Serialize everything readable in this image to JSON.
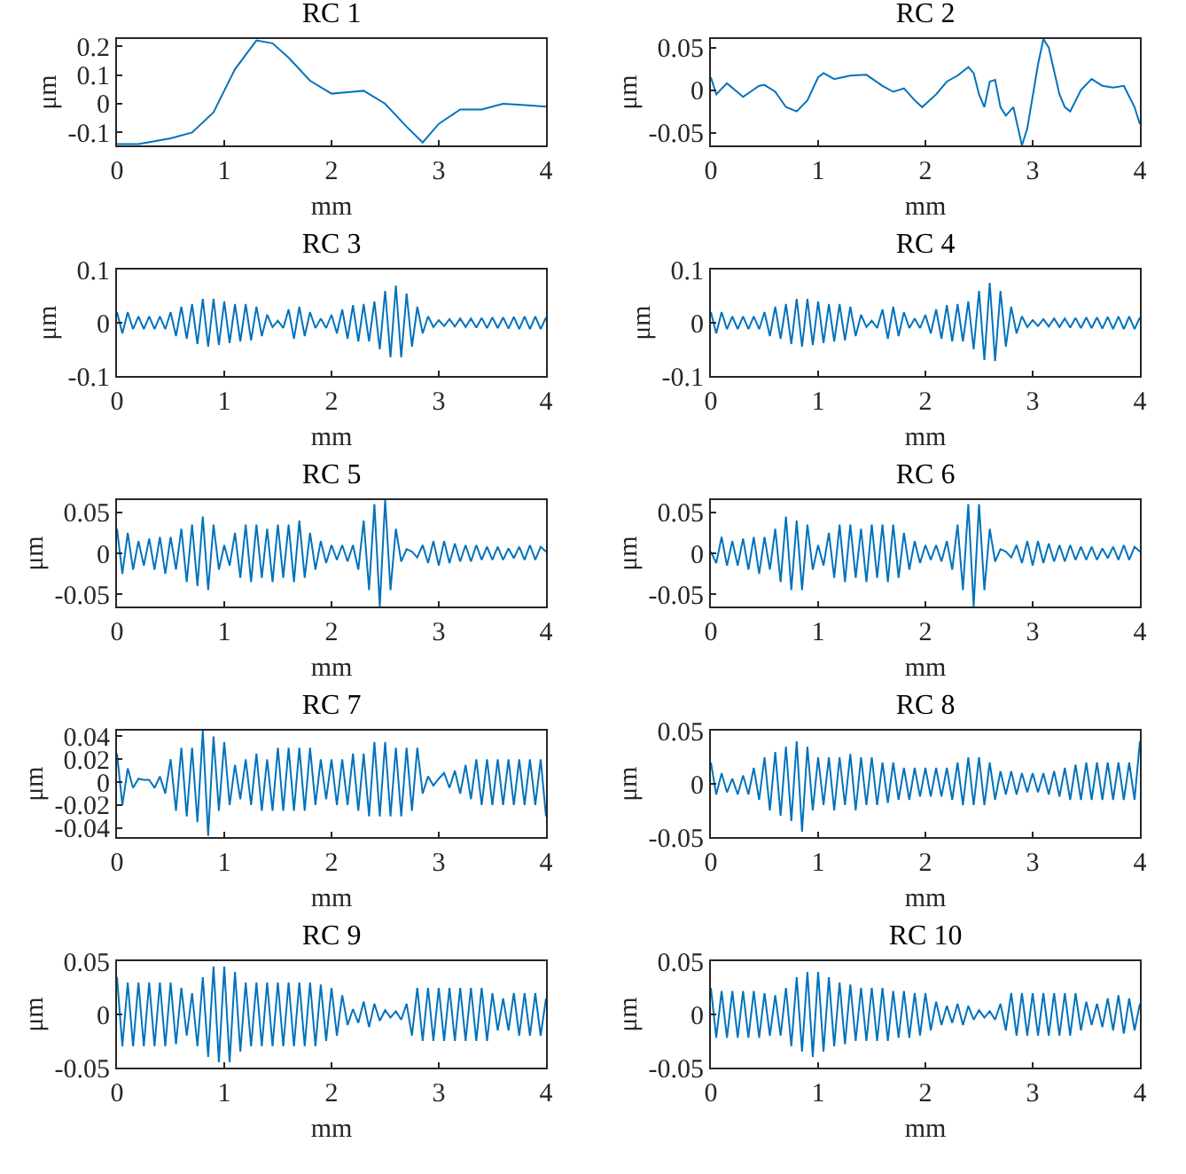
{
  "chart_data": [
    {
      "type": "line",
      "title": "RC 1",
      "xlabel": "mm",
      "ylabel": "μm",
      "color": "#0072bd",
      "xlim": [
        0,
        4
      ],
      "xticks": [
        0,
        1,
        2,
        3,
        4
      ],
      "ylim": [
        -0.145,
        0.225
      ],
      "yticks": [
        -0.1,
        0,
        0.1,
        0.2
      ],
      "x": [
        0,
        0.2,
        0.5,
        0.7,
        0.9,
        1.1,
        1.3,
        1.45,
        1.6,
        1.8,
        2.0,
        2.15,
        2.3,
        2.5,
        2.7,
        2.85,
        3.0,
        3.2,
        3.4,
        3.6,
        3.8,
        4.0
      ],
      "values": [
        -0.14,
        -0.14,
        -0.12,
        -0.1,
        -0.03,
        0.12,
        0.22,
        0.21,
        0.16,
        0.08,
        0.035,
        0.04,
        0.045,
        0.0,
        -0.08,
        -0.135,
        -0.07,
        -0.02,
        -0.02,
        0.0,
        -0.005,
        -0.01
      ]
    },
    {
      "type": "line",
      "title": "RC 2",
      "xlabel": "mm",
      "ylabel": "μm",
      "color": "#0072bd",
      "xlim": [
        0,
        4
      ],
      "xticks": [
        0,
        1,
        2,
        3,
        4
      ],
      "ylim": [
        -0.065,
        0.06
      ],
      "yticks": [
        -0.05,
        0,
        0.05
      ],
      "x": [
        0,
        0.05,
        0.15,
        0.3,
        0.45,
        0.5,
        0.6,
        0.7,
        0.8,
        0.9,
        1.0,
        1.05,
        1.15,
        1.3,
        1.45,
        1.6,
        1.7,
        1.8,
        1.9,
        1.97,
        2.1,
        2.2,
        2.3,
        2.4,
        2.45,
        2.5,
        2.55,
        2.6,
        2.65,
        2.7,
        2.75,
        2.82,
        2.9,
        2.95,
        3.05,
        3.1,
        3.15,
        3.25,
        3.3,
        3.35,
        3.45,
        3.55,
        3.65,
        3.75,
        3.85,
        3.95,
        4.0
      ],
      "values": [
        0.015,
        -0.005,
        0.008,
        -0.008,
        0.005,
        0.006,
        -0.002,
        -0.02,
        -0.025,
        -0.012,
        0.015,
        0.02,
        0.013,
        0.017,
        0.018,
        0.005,
        -0.002,
        0.002,
        -0.012,
        -0.02,
        -0.005,
        0.01,
        0.017,
        0.027,
        0.02,
        -0.005,
        -0.02,
        0.01,
        0.012,
        -0.02,
        -0.03,
        -0.02,
        -0.065,
        -0.045,
        0.03,
        0.06,
        0.05,
        -0.005,
        -0.02,
        -0.025,
        0.0,
        0.013,
        0.005,
        0.003,
        0.005,
        -0.02,
        -0.04
      ]
    },
    {
      "type": "line",
      "title": "RC 3",
      "xlabel": "mm",
      "ylabel": "μm",
      "color": "#0072bd",
      "xlim": [
        0,
        4
      ],
      "xticks": [
        0,
        1,
        2,
        3,
        4
      ],
      "ylim": [
        -0.1,
        0.1
      ],
      "yticks": [
        -0.1,
        0,
        0.1
      ],
      "x": [
        0,
        0.05,
        0.1,
        0.15,
        0.2,
        0.25,
        0.3,
        0.35,
        0.4,
        0.45,
        0.5,
        0.55,
        0.6,
        0.65,
        0.7,
        0.75,
        0.8,
        0.85,
        0.9,
        0.95,
        1,
        1.05,
        1.1,
        1.15,
        1.2,
        1.25,
        1.3,
        1.35,
        1.4,
        1.45,
        1.5,
        1.55,
        1.6,
        1.65,
        1.7,
        1.75,
        1.8,
        1.85,
        1.9,
        1.95,
        2,
        2.05,
        2.1,
        2.15,
        2.2,
        2.25,
        2.3,
        2.35,
        2.4,
        2.45,
        2.5,
        2.55,
        2.6,
        2.65,
        2.7,
        2.75,
        2.8,
        2.85,
        2.9,
        2.95,
        3,
        3.05,
        3.1,
        3.15,
        3.2,
        3.25,
        3.3,
        3.35,
        3.4,
        3.45,
        3.5,
        3.55,
        3.6,
        3.65,
        3.7,
        3.75,
        3.8,
        3.85,
        3.9,
        3.95,
        4
      ],
      "values": [
        0.02,
        -0.02,
        0.02,
        -0.012,
        0.012,
        -0.012,
        0.012,
        -0.012,
        0.012,
        -0.012,
        0.02,
        -0.025,
        0.03,
        -0.03,
        0.035,
        -0.04,
        0.045,
        -0.045,
        0.045,
        -0.042,
        0.04,
        -0.038,
        0.035,
        -0.035,
        0.035,
        -0.033,
        0.03,
        -0.025,
        0.015,
        -0.008,
        0.004,
        -0.01,
        0.025,
        -0.03,
        0.03,
        -0.025,
        0.02,
        -0.01,
        0.008,
        -0.01,
        0.015,
        -0.02,
        0.025,
        -0.03,
        0.033,
        -0.035,
        0.035,
        -0.035,
        0.04,
        -0.05,
        0.06,
        -0.065,
        0.07,
        -0.065,
        0.055,
        -0.045,
        0.03,
        -0.02,
        0.012,
        -0.008,
        0.005,
        -0.006,
        0.007,
        -0.007,
        0.008,
        -0.008,
        0.008,
        -0.009,
        0.009,
        -0.01,
        0.01,
        -0.01,
        0.01,
        -0.011,
        0.011,
        -0.012,
        0.012,
        -0.012,
        0.012,
        -0.012,
        0.01
      ]
    },
    {
      "type": "line",
      "title": "RC 4",
      "xlabel": "mm",
      "ylabel": "μm",
      "color": "#0072bd",
      "xlim": [
        0,
        4
      ],
      "xticks": [
        0,
        1,
        2,
        3,
        4
      ],
      "ylim": [
        -0.1,
        0.1
      ],
      "yticks": [
        -0.1,
        0,
        0.1
      ],
      "x": [
        0,
        0.05,
        0.1,
        0.15,
        0.2,
        0.25,
        0.3,
        0.35,
        0.4,
        0.45,
        0.5,
        0.55,
        0.6,
        0.65,
        0.7,
        0.75,
        0.8,
        0.85,
        0.9,
        0.95,
        1,
        1.05,
        1.1,
        1.15,
        1.2,
        1.25,
        1.3,
        1.35,
        1.4,
        1.45,
        1.5,
        1.55,
        1.6,
        1.65,
        1.7,
        1.75,
        1.8,
        1.85,
        1.9,
        1.95,
        2,
        2.05,
        2.1,
        2.15,
        2.2,
        2.25,
        2.3,
        2.35,
        2.4,
        2.45,
        2.5,
        2.55,
        2.6,
        2.65,
        2.7,
        2.75,
        2.8,
        2.85,
        2.9,
        2.95,
        3,
        3.05,
        3.1,
        3.15,
        3.2,
        3.25,
        3.3,
        3.35,
        3.4,
        3.45,
        3.5,
        3.55,
        3.6,
        3.65,
        3.7,
        3.75,
        3.8,
        3.85,
        3.9,
        3.95,
        4
      ],
      "values": [
        0.02,
        -0.02,
        0.02,
        -0.012,
        0.012,
        -0.012,
        0.012,
        -0.012,
        0.012,
        -0.012,
        0.02,
        -0.025,
        0.03,
        -0.03,
        0.035,
        -0.04,
        0.045,
        -0.045,
        0.045,
        -0.042,
        0.04,
        -0.038,
        0.035,
        -0.035,
        0.035,
        -0.033,
        0.03,
        -0.025,
        0.015,
        -0.008,
        0.004,
        -0.01,
        0.025,
        -0.03,
        0.03,
        -0.025,
        0.02,
        -0.01,
        0.008,
        -0.01,
        0.015,
        -0.02,
        0.025,
        -0.03,
        0.033,
        -0.035,
        0.035,
        -0.035,
        0.04,
        -0.05,
        0.06,
        -0.07,
        0.075,
        -0.072,
        0.06,
        -0.045,
        0.03,
        -0.02,
        0.012,
        -0.008,
        0.005,
        -0.006,
        0.007,
        -0.007,
        0.008,
        -0.008,
        0.008,
        -0.009,
        0.009,
        -0.01,
        0.01,
        -0.01,
        0.01,
        -0.011,
        0.011,
        -0.012,
        0.012,
        -0.012,
        0.012,
        -0.012,
        0.01
      ]
    },
    {
      "type": "line",
      "title": "RC 5",
      "xlabel": "mm",
      "ylabel": "μm",
      "color": "#0072bd",
      "xlim": [
        0,
        4
      ],
      "xticks": [
        0,
        1,
        2,
        3,
        4
      ],
      "ylim": [
        -0.065,
        0.065
      ],
      "yticks": [
        -0.05,
        0,
        0.05
      ],
      "x": [
        0,
        0.05,
        0.1,
        0.15,
        0.2,
        0.25,
        0.3,
        0.35,
        0.4,
        0.45,
        0.5,
        0.55,
        0.6,
        0.65,
        0.7,
        0.75,
        0.8,
        0.85,
        0.9,
        0.95,
        1,
        1.05,
        1.1,
        1.15,
        1.2,
        1.25,
        1.3,
        1.35,
        1.4,
        1.45,
        1.5,
        1.55,
        1.6,
        1.65,
        1.7,
        1.75,
        1.8,
        1.85,
        1.9,
        1.95,
        2,
        2.05,
        2.1,
        2.15,
        2.2,
        2.25,
        2.3,
        2.35,
        2.4,
        2.45,
        2.5,
        2.55,
        2.6,
        2.65,
        2.7,
        2.75,
        2.8,
        2.85,
        2.9,
        2.95,
        3,
        3.05,
        3.1,
        3.15,
        3.2,
        3.25,
        3.3,
        3.35,
        3.4,
        3.45,
        3.5,
        3.55,
        3.6,
        3.65,
        3.7,
        3.75,
        3.8,
        3.85,
        3.9,
        3.95,
        4
      ],
      "values": [
        0.03,
        -0.025,
        0.025,
        -0.02,
        0.015,
        -0.015,
        0.018,
        -0.02,
        0.02,
        -0.025,
        0.02,
        -0.02,
        0.03,
        -0.035,
        0.035,
        -0.04,
        0.045,
        -0.045,
        0.035,
        -0.02,
        0.01,
        -0.015,
        0.025,
        -0.03,
        0.035,
        -0.035,
        0.035,
        -0.03,
        0.03,
        -0.035,
        0.035,
        -0.03,
        0.035,
        -0.035,
        0.04,
        -0.03,
        0.025,
        -0.02,
        0.015,
        -0.012,
        0.01,
        -0.008,
        0.01,
        -0.01,
        0.01,
        -0.02,
        0.04,
        -0.045,
        0.06,
        -0.065,
        0.065,
        -0.045,
        0.03,
        -0.01,
        0.005,
        0.002,
        -0.005,
        0.01,
        -0.012,
        0.015,
        -0.015,
        0.015,
        -0.012,
        0.012,
        -0.01,
        0.01,
        -0.01,
        0.01,
        -0.008,
        0.008,
        -0.008,
        0.008,
        -0.008,
        0.006,
        -0.006,
        0.008,
        -0.008,
        0.01,
        -0.008,
        0.008,
        0.002
      ]
    },
    {
      "type": "line",
      "title": "RC 6",
      "xlabel": "mm",
      "ylabel": "μm",
      "color": "#0072bd",
      "xlim": [
        0,
        4
      ],
      "xticks": [
        0,
        1,
        2,
        3,
        4
      ],
      "ylim": [
        -0.065,
        0.065
      ],
      "yticks": [
        -0.05,
        0,
        0.05
      ],
      "x": [
        0,
        0.05,
        0.1,
        0.15,
        0.2,
        0.25,
        0.3,
        0.35,
        0.4,
        0.45,
        0.5,
        0.55,
        0.6,
        0.65,
        0.7,
        0.75,
        0.8,
        0.85,
        0.9,
        0.95,
        1,
        1.05,
        1.1,
        1.15,
        1.2,
        1.25,
        1.3,
        1.35,
        1.4,
        1.45,
        1.5,
        1.55,
        1.6,
        1.65,
        1.7,
        1.75,
        1.8,
        1.85,
        1.9,
        1.95,
        2,
        2.05,
        2.1,
        2.15,
        2.2,
        2.25,
        2.3,
        2.35,
        2.4,
        2.45,
        2.5,
        2.55,
        2.6,
        2.65,
        2.7,
        2.75,
        2.8,
        2.85,
        2.9,
        2.95,
        3,
        3.05,
        3.1,
        3.15,
        3.2,
        3.25,
        3.3,
        3.35,
        3.4,
        3.45,
        3.5,
        3.55,
        3.6,
        3.65,
        3.7,
        3.75,
        3.8,
        3.85,
        3.9,
        3.95,
        4
      ],
      "values": [
        0.002,
        -0.012,
        0.02,
        -0.015,
        0.015,
        -0.015,
        0.018,
        -0.02,
        0.02,
        -0.025,
        0.02,
        -0.02,
        0.03,
        -0.035,
        0.045,
        -0.045,
        0.04,
        -0.045,
        0.035,
        -0.02,
        0.01,
        -0.015,
        0.025,
        -0.03,
        0.035,
        -0.035,
        0.035,
        -0.03,
        0.03,
        -0.035,
        0.035,
        -0.03,
        0.035,
        -0.035,
        0.035,
        -0.03,
        0.025,
        -0.02,
        0.015,
        -0.012,
        0.01,
        -0.008,
        0.01,
        -0.01,
        0.015,
        -0.02,
        0.035,
        -0.045,
        0.06,
        -0.065,
        0.06,
        -0.045,
        0.03,
        -0.01,
        0.005,
        0.002,
        -0.005,
        0.01,
        -0.012,
        0.015,
        -0.015,
        0.015,
        -0.012,
        0.012,
        -0.01,
        0.01,
        -0.01,
        0.01,
        -0.008,
        0.008,
        -0.008,
        0.008,
        -0.008,
        0.006,
        -0.006,
        0.008,
        -0.008,
        0.01,
        -0.008,
        0.008,
        0.002
      ]
    },
    {
      "type": "line",
      "title": "RC 7",
      "xlabel": "mm",
      "ylabel": "μm",
      "color": "#0072bd",
      "xlim": [
        0,
        4
      ],
      "xticks": [
        0,
        1,
        2,
        3,
        4
      ],
      "ylim": [
        -0.048,
        0.045
      ],
      "yticks": [
        -0.04,
        -0.02,
        0,
        0.02,
        0.04
      ],
      "x": [
        0,
        0.05,
        0.1,
        0.15,
        0.2,
        0.25,
        0.3,
        0.35,
        0.4,
        0.45,
        0.5,
        0.55,
        0.6,
        0.65,
        0.7,
        0.75,
        0.8,
        0.85,
        0.9,
        0.95,
        1,
        1.05,
        1.1,
        1.15,
        1.2,
        1.25,
        1.3,
        1.35,
        1.4,
        1.45,
        1.5,
        1.55,
        1.6,
        1.65,
        1.7,
        1.75,
        1.8,
        1.85,
        1.9,
        1.95,
        2,
        2.05,
        2.1,
        2.15,
        2.2,
        2.25,
        2.3,
        2.35,
        2.4,
        2.45,
        2.5,
        2.55,
        2.6,
        2.65,
        2.7,
        2.75,
        2.8,
        2.85,
        2.9,
        2.95,
        3,
        3.05,
        3.1,
        3.15,
        3.2,
        3.25,
        3.3,
        3.35,
        3.4,
        3.45,
        3.5,
        3.55,
        3.6,
        3.65,
        3.7,
        3.75,
        3.8,
        3.85,
        3.9,
        3.95,
        4
      ],
      "values": [
        0.025,
        -0.02,
        0.012,
        -0.005,
        0.003,
        0.002,
        0.002,
        -0.005,
        0.005,
        -0.01,
        0.02,
        -0.025,
        0.03,
        -0.03,
        0.03,
        -0.035,
        0.045,
        -0.047,
        0.04,
        -0.025,
        0.035,
        -0.02,
        0.015,
        -0.015,
        0.02,
        -0.02,
        0.025,
        -0.025,
        0.02,
        -0.025,
        0.03,
        -0.025,
        0.03,
        -0.025,
        0.03,
        -0.025,
        0.03,
        -0.02,
        0.02,
        -0.015,
        0.02,
        -0.02,
        0.02,
        -0.02,
        0.025,
        -0.025,
        0.025,
        -0.03,
        0.035,
        -0.03,
        0.035,
        -0.03,
        0.03,
        -0.03,
        0.03,
        -0.025,
        0.03,
        -0.01,
        0.005,
        -0.003,
        0.003,
        0.008,
        -0.005,
        0.01,
        -0.01,
        0.015,
        -0.015,
        0.02,
        -0.02,
        0.02,
        -0.02,
        0.02,
        -0.02,
        0.02,
        -0.02,
        0.02,
        -0.02,
        0.02,
        -0.02,
        0.02,
        -0.03
      ]
    },
    {
      "type": "line",
      "title": "RC 8",
      "xlabel": "mm",
      "ylabel": "μm",
      "color": "#0072bd",
      "xlim": [
        0,
        4
      ],
      "xticks": [
        0,
        1,
        2,
        3,
        4
      ],
      "ylim": [
        -0.05,
        0.05
      ],
      "yticks": [
        -0.05,
        0,
        0.05
      ],
      "x": [
        0,
        0.05,
        0.1,
        0.15,
        0.2,
        0.25,
        0.3,
        0.35,
        0.4,
        0.45,
        0.5,
        0.55,
        0.6,
        0.65,
        0.7,
        0.75,
        0.8,
        0.85,
        0.9,
        0.95,
        1,
        1.05,
        1.1,
        1.15,
        1.2,
        1.25,
        1.3,
        1.35,
        1.4,
        1.45,
        1.5,
        1.55,
        1.6,
        1.65,
        1.7,
        1.75,
        1.8,
        1.85,
        1.9,
        1.95,
        2,
        2.05,
        2.1,
        2.15,
        2.2,
        2.25,
        2.3,
        2.35,
        2.4,
        2.45,
        2.5,
        2.55,
        2.6,
        2.65,
        2.7,
        2.75,
        2.8,
        2.85,
        2.9,
        2.95,
        3,
        3.05,
        3.1,
        3.15,
        3.2,
        3.25,
        3.3,
        3.35,
        3.4,
        3.45,
        3.5,
        3.55,
        3.6,
        3.65,
        3.7,
        3.75,
        3.8,
        3.85,
        3.9,
        3.95,
        4
      ],
      "values": [
        0.02,
        -0.01,
        0.01,
        -0.008,
        0.005,
        -0.01,
        0.008,
        -0.01,
        0.015,
        -0.015,
        0.025,
        -0.025,
        0.03,
        -0.03,
        0.035,
        -0.035,
        0.04,
        -0.045,
        0.035,
        -0.025,
        0.025,
        -0.02,
        0.025,
        -0.025,
        0.025,
        -0.02,
        0.028,
        -0.025,
        0.025,
        -0.02,
        0.025,
        -0.02,
        0.02,
        -0.018,
        0.02,
        -0.015,
        0.015,
        -0.015,
        0.015,
        -0.012,
        0.015,
        -0.012,
        0.015,
        -0.012,
        0.015,
        -0.015,
        0.02,
        -0.02,
        0.025,
        -0.02,
        0.025,
        -0.02,
        0.02,
        -0.015,
        0.012,
        -0.01,
        0.012,
        -0.01,
        0.01,
        -0.008,
        0.01,
        -0.008,
        0.01,
        -0.01,
        0.012,
        -0.012,
        0.015,
        -0.015,
        0.018,
        -0.015,
        0.02,
        -0.015,
        0.02,
        -0.015,
        0.02,
        -0.015,
        0.02,
        -0.015,
        0.02,
        -0.015,
        0.04
      ]
    },
    {
      "type": "line",
      "title": "RC 9",
      "xlabel": "mm",
      "ylabel": "μm",
      "color": "#0072bd",
      "xlim": [
        0,
        4
      ],
      "xticks": [
        0,
        1,
        2,
        3,
        4
      ],
      "ylim": [
        -0.05,
        0.05
      ],
      "yticks": [
        -0.05,
        0,
        0.05
      ],
      "x": [
        0,
        0.05,
        0.1,
        0.15,
        0.2,
        0.25,
        0.3,
        0.35,
        0.4,
        0.45,
        0.5,
        0.55,
        0.6,
        0.65,
        0.7,
        0.75,
        0.8,
        0.85,
        0.9,
        0.95,
        1,
        1.05,
        1.1,
        1.15,
        1.2,
        1.25,
        1.3,
        1.35,
        1.4,
        1.45,
        1.5,
        1.55,
        1.6,
        1.65,
        1.7,
        1.75,
        1.8,
        1.85,
        1.9,
        1.95,
        2,
        2.05,
        2.1,
        2.15,
        2.2,
        2.25,
        2.3,
        2.35,
        2.4,
        2.45,
        2.5,
        2.55,
        2.6,
        2.65,
        2.7,
        2.75,
        2.8,
        2.85,
        2.9,
        2.95,
        3,
        3.05,
        3.1,
        3.15,
        3.2,
        3.25,
        3.3,
        3.35,
        3.4,
        3.45,
        3.5,
        3.55,
        3.6,
        3.65,
        3.7,
        3.75,
        3.8,
        3.85,
        3.9,
        3.95,
        4
      ],
      "values": [
        0.035,
        -0.03,
        0.03,
        -0.03,
        0.03,
        -0.03,
        0.03,
        -0.03,
        0.03,
        -0.03,
        0.03,
        -0.028,
        0.025,
        -0.02,
        0.02,
        -0.03,
        0.035,
        -0.04,
        0.045,
        -0.045,
        0.045,
        -0.045,
        0.04,
        -0.035,
        0.03,
        -0.03,
        0.03,
        -0.03,
        0.03,
        -0.03,
        0.03,
        -0.03,
        0.03,
        -0.03,
        0.03,
        -0.03,
        0.03,
        -0.03,
        0.028,
        -0.025,
        0.025,
        -0.02,
        0.018,
        -0.01,
        0.005,
        -0.008,
        0.012,
        -0.012,
        0.01,
        -0.006,
        0.004,
        -0.003,
        0.003,
        -0.005,
        0.01,
        -0.02,
        0.025,
        -0.025,
        0.025,
        -0.025,
        0.025,
        -0.025,
        0.025,
        -0.025,
        0.025,
        -0.025,
        0.025,
        -0.025,
        0.025,
        -0.025,
        0.02,
        -0.015,
        0.015,
        -0.015,
        0.02,
        -0.02,
        0.02,
        -0.02,
        0.02,
        -0.02,
        0.015
      ]
    },
    {
      "type": "line",
      "title": "RC 10",
      "xlabel": "mm",
      "ylabel": "μm",
      "color": "#0072bd",
      "xlim": [
        0,
        4
      ],
      "xticks": [
        0,
        1,
        2,
        3,
        4
      ],
      "ylim": [
        -0.05,
        0.05
      ],
      "yticks": [
        -0.05,
        0,
        0.05
      ],
      "x": [
        0,
        0.05,
        0.1,
        0.15,
        0.2,
        0.25,
        0.3,
        0.35,
        0.4,
        0.45,
        0.5,
        0.55,
        0.6,
        0.65,
        0.7,
        0.75,
        0.8,
        0.85,
        0.9,
        0.95,
        1,
        1.05,
        1.1,
        1.15,
        1.2,
        1.25,
        1.3,
        1.35,
        1.4,
        1.45,
        1.5,
        1.55,
        1.6,
        1.65,
        1.7,
        1.75,
        1.8,
        1.85,
        1.9,
        1.95,
        2,
        2.05,
        2.1,
        2.15,
        2.2,
        2.25,
        2.3,
        2.35,
        2.4,
        2.45,
        2.5,
        2.55,
        2.6,
        2.65,
        2.7,
        2.75,
        2.8,
        2.85,
        2.9,
        2.95,
        3,
        3.05,
        3.1,
        3.15,
        3.2,
        3.25,
        3.3,
        3.35,
        3.4,
        3.45,
        3.5,
        3.55,
        3.6,
        3.65,
        3.7,
        3.75,
        3.8,
        3.85,
        3.9,
        3.95,
        4
      ],
      "values": [
        0.025,
        -0.022,
        0.022,
        -0.022,
        0.022,
        -0.022,
        0.022,
        -0.022,
        0.022,
        -0.022,
        0.02,
        -0.02,
        0.018,
        -0.02,
        0.025,
        -0.03,
        0.035,
        -0.035,
        0.04,
        -0.04,
        0.04,
        -0.035,
        0.035,
        -0.03,
        0.03,
        -0.028,
        0.028,
        -0.025,
        0.025,
        -0.025,
        0.025,
        -0.025,
        0.025,
        -0.025,
        0.022,
        -0.022,
        0.022,
        -0.022,
        0.02,
        -0.02,
        0.02,
        -0.015,
        0.012,
        -0.01,
        0.008,
        -0.008,
        0.01,
        -0.01,
        0.008,
        -0.005,
        0.004,
        -0.003,
        0.003,
        -0.005,
        0.01,
        -0.015,
        0.02,
        -0.02,
        0.02,
        -0.02,
        0.02,
        -0.02,
        0.02,
        -0.02,
        0.02,
        -0.02,
        0.02,
        -0.02,
        0.02,
        -0.015,
        0.012,
        -0.01,
        0.01,
        -0.012,
        0.015,
        -0.015,
        0.018,
        -0.018,
        0.015,
        -0.015,
        0.01
      ]
    }
  ]
}
